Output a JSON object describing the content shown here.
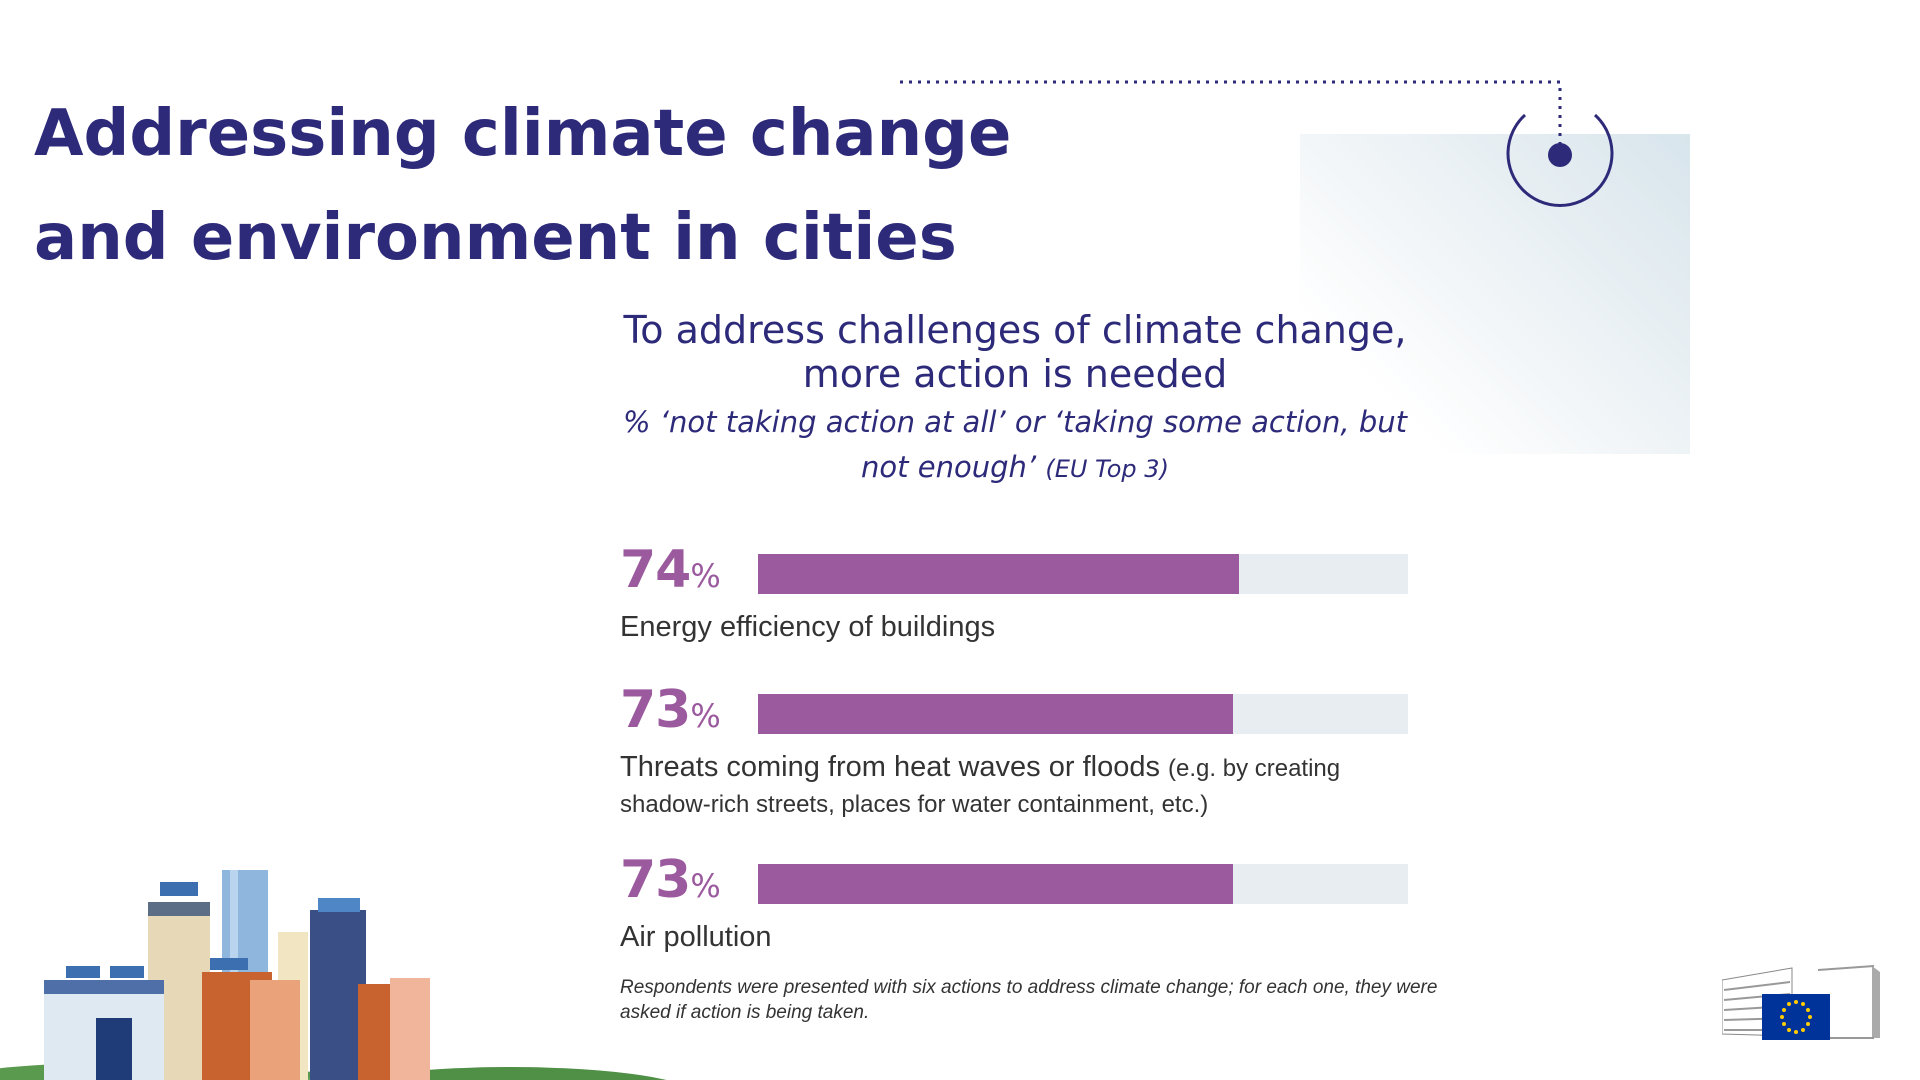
{
  "title": "Addressing climate change and environment in cities",
  "chart_data": {
    "type": "bar",
    "orientation": "horizontal",
    "title": "To address challenges of climate change, more action is needed",
    "subtitle_main": "% ‘not taking action at all’ or ‘taking some action, but not enough’",
    "subtitle_note": "(EU Top 3)",
    "unit": "%",
    "xlim": [
      0,
      100
    ],
    "bar_color": "#9b5a9e",
    "track_color": "#e7edf1",
    "rows": [
      {
        "value": 74,
        "value_label": "74",
        "label": "Energy efficiency of buildings",
        "note": ""
      },
      {
        "value": 73,
        "value_label": "73",
        "label": "Threats coming from heat waves or floods",
        "note": "(e.g. by creating shadow-rich streets, places for water containment, etc.)"
      },
      {
        "value": 73,
        "value_label": "73",
        "label": "Air pollution",
        "note": ""
      }
    ]
  },
  "footnote": "Respondents were presented with six actions to address climate change; for each one, they were asked if action is being taken.",
  "colors": {
    "title": "#2d2a7a",
    "accent": "#9b5a9e",
    "track": "#e7edf1",
    "eu_blue": "#003399",
    "eu_star": "#ffcc00"
  },
  "icons": {
    "city": "city-skyline-illustration",
    "logo": "european-commission-logo",
    "decoration": "dotted-line-target-icon"
  }
}
